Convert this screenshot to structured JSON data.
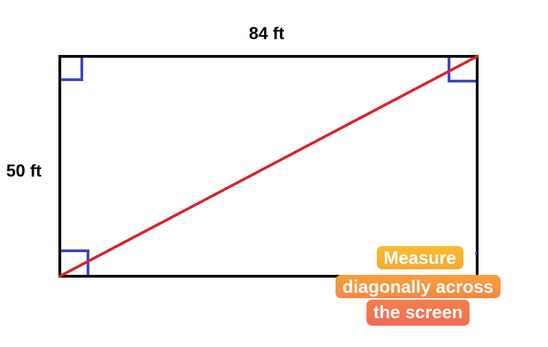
{
  "diagram": {
    "width_label": "84 ft",
    "height_label": "50 ft",
    "callout": {
      "line1": "Measure",
      "line2": "diagonally across",
      "line3": "the screen"
    }
  },
  "colors": {
    "rectangle": "#000000",
    "diagonal": "#d8232a",
    "right_angle_marker": "#3d45c2",
    "callout_top": "#f8b42c",
    "callout_bottom": "#f4645a"
  }
}
